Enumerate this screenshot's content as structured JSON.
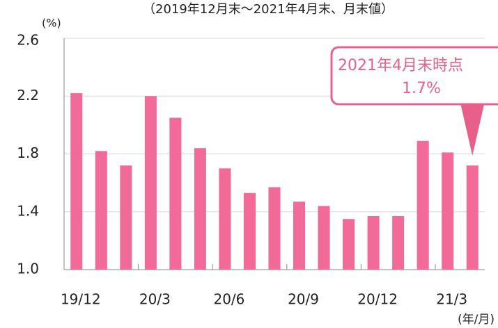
{
  "chart_data": {
    "type": "bar",
    "subtitle": "（2019年12月末～2021年4月末、月末値）",
    "y_unit": "(%)",
    "x_unit": "(年/月)",
    "categories": [
      "19/12",
      null,
      null,
      "20/3",
      null,
      null,
      "20/6",
      null,
      null,
      "20/9",
      null,
      null,
      "20/12",
      null,
      null,
      "21/3",
      null
    ],
    "values": [
      2.22,
      1.82,
      1.72,
      2.2,
      2.05,
      1.84,
      1.7,
      1.53,
      1.57,
      1.47,
      1.44,
      1.35,
      1.37,
      1.37,
      1.89,
      1.81,
      1.72
    ],
    "color": "#f26b98",
    "ylim": [
      1.0,
      2.6
    ],
    "yticks": [
      {
        "value": 1,
        "label": "1.0"
      },
      1.4,
      1.8,
      2.2,
      2.6
    ],
    "grid": true,
    "annotation": {
      "title": "2021年4月末時点",
      "value_label": "1.7%",
      "color": "#e8608a"
    }
  }
}
